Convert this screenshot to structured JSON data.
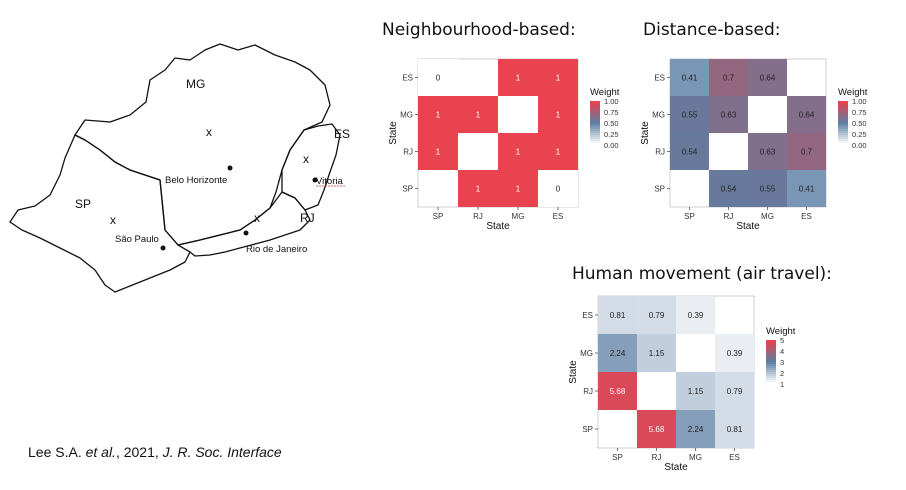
{
  "headings": {
    "neighbourhood": "Neighbourhood-based:",
    "distance": "Distance-based:",
    "movement": "Human movement (air travel):"
  },
  "citation": {
    "authors": "Lee S.A. ",
    "etal": "et al.",
    "year": ", 2021, ",
    "journal": "J. R. Soc. Interface"
  },
  "map": {
    "regions": [
      "MG",
      "ES",
      "SP",
      "RJ"
    ],
    "cities": [
      "Belo Horizonte",
      "Vitoria",
      "São Paulo",
      "Rio de Janeiro"
    ],
    "marker_symbol": "x"
  },
  "colors": {
    "high": "#e8434f",
    "mid": "#5c7fa3",
    "low": "#ffffff",
    "panel_bg": "#ebebeb"
  },
  "chart_data": [
    {
      "type": "heatmap",
      "id": "neighbourhood",
      "xlabel": "State",
      "ylabel": "State",
      "x_categories": [
        "SP",
        "RJ",
        "MG",
        "ES"
      ],
      "y_categories": [
        "ES",
        "MG",
        "RJ",
        "SP"
      ],
      "cells": [
        [
          0,
          null,
          1,
          1
        ],
        [
          1,
          1,
          null,
          1
        ],
        [
          1,
          null,
          1,
          1
        ],
        [
          null,
          1,
          1,
          0
        ]
      ],
      "cell_rows_order": [
        "ES",
        "MG",
        "RJ",
        "SP"
      ],
      "cell_cols_order": [
        "SP",
        "RJ",
        "MG",
        "ES"
      ],
      "legend_title": "Weight",
      "legend_ticks": [
        "1.00",
        "0.75",
        "0.50",
        "0.25",
        "0.00"
      ],
      "scale_max": 1
    },
    {
      "type": "heatmap",
      "id": "distance",
      "xlabel": "State",
      "ylabel": "State",
      "x_categories": [
        "SP",
        "RJ",
        "MG",
        "ES"
      ],
      "y_categories": [
        "ES",
        "MG",
        "RJ",
        "SP"
      ],
      "cells": [
        [
          0.41,
          0.7,
          0.64,
          null
        ],
        [
          0.55,
          0.63,
          null,
          0.64
        ],
        [
          0.54,
          null,
          0.63,
          0.7
        ],
        [
          null,
          0.54,
          0.55,
          0.41
        ]
      ],
      "legend_title": "Weight",
      "legend_ticks": [
        "1.00",
        "0.75",
        "0.50",
        "0.25",
        "0.00"
      ],
      "scale_max": 1
    },
    {
      "type": "heatmap",
      "id": "movement",
      "xlabel": "State",
      "ylabel": "State",
      "x_categories": [
        "SP",
        "RJ",
        "MG",
        "ES"
      ],
      "y_categories": [
        "ES",
        "MG",
        "RJ",
        "SP"
      ],
      "cells": [
        [
          0.81,
          0.79,
          0.39,
          null
        ],
        [
          2.24,
          1.15,
          null,
          0.39
        ],
        [
          5.68,
          null,
          1.15,
          0.79
        ],
        [
          null,
          5.68,
          2.24,
          0.81
        ]
      ],
      "legend_title": "Weight",
      "legend_ticks": [
        "5",
        "4",
        "3",
        "2",
        "1"
      ],
      "scale_max": 6
    }
  ]
}
